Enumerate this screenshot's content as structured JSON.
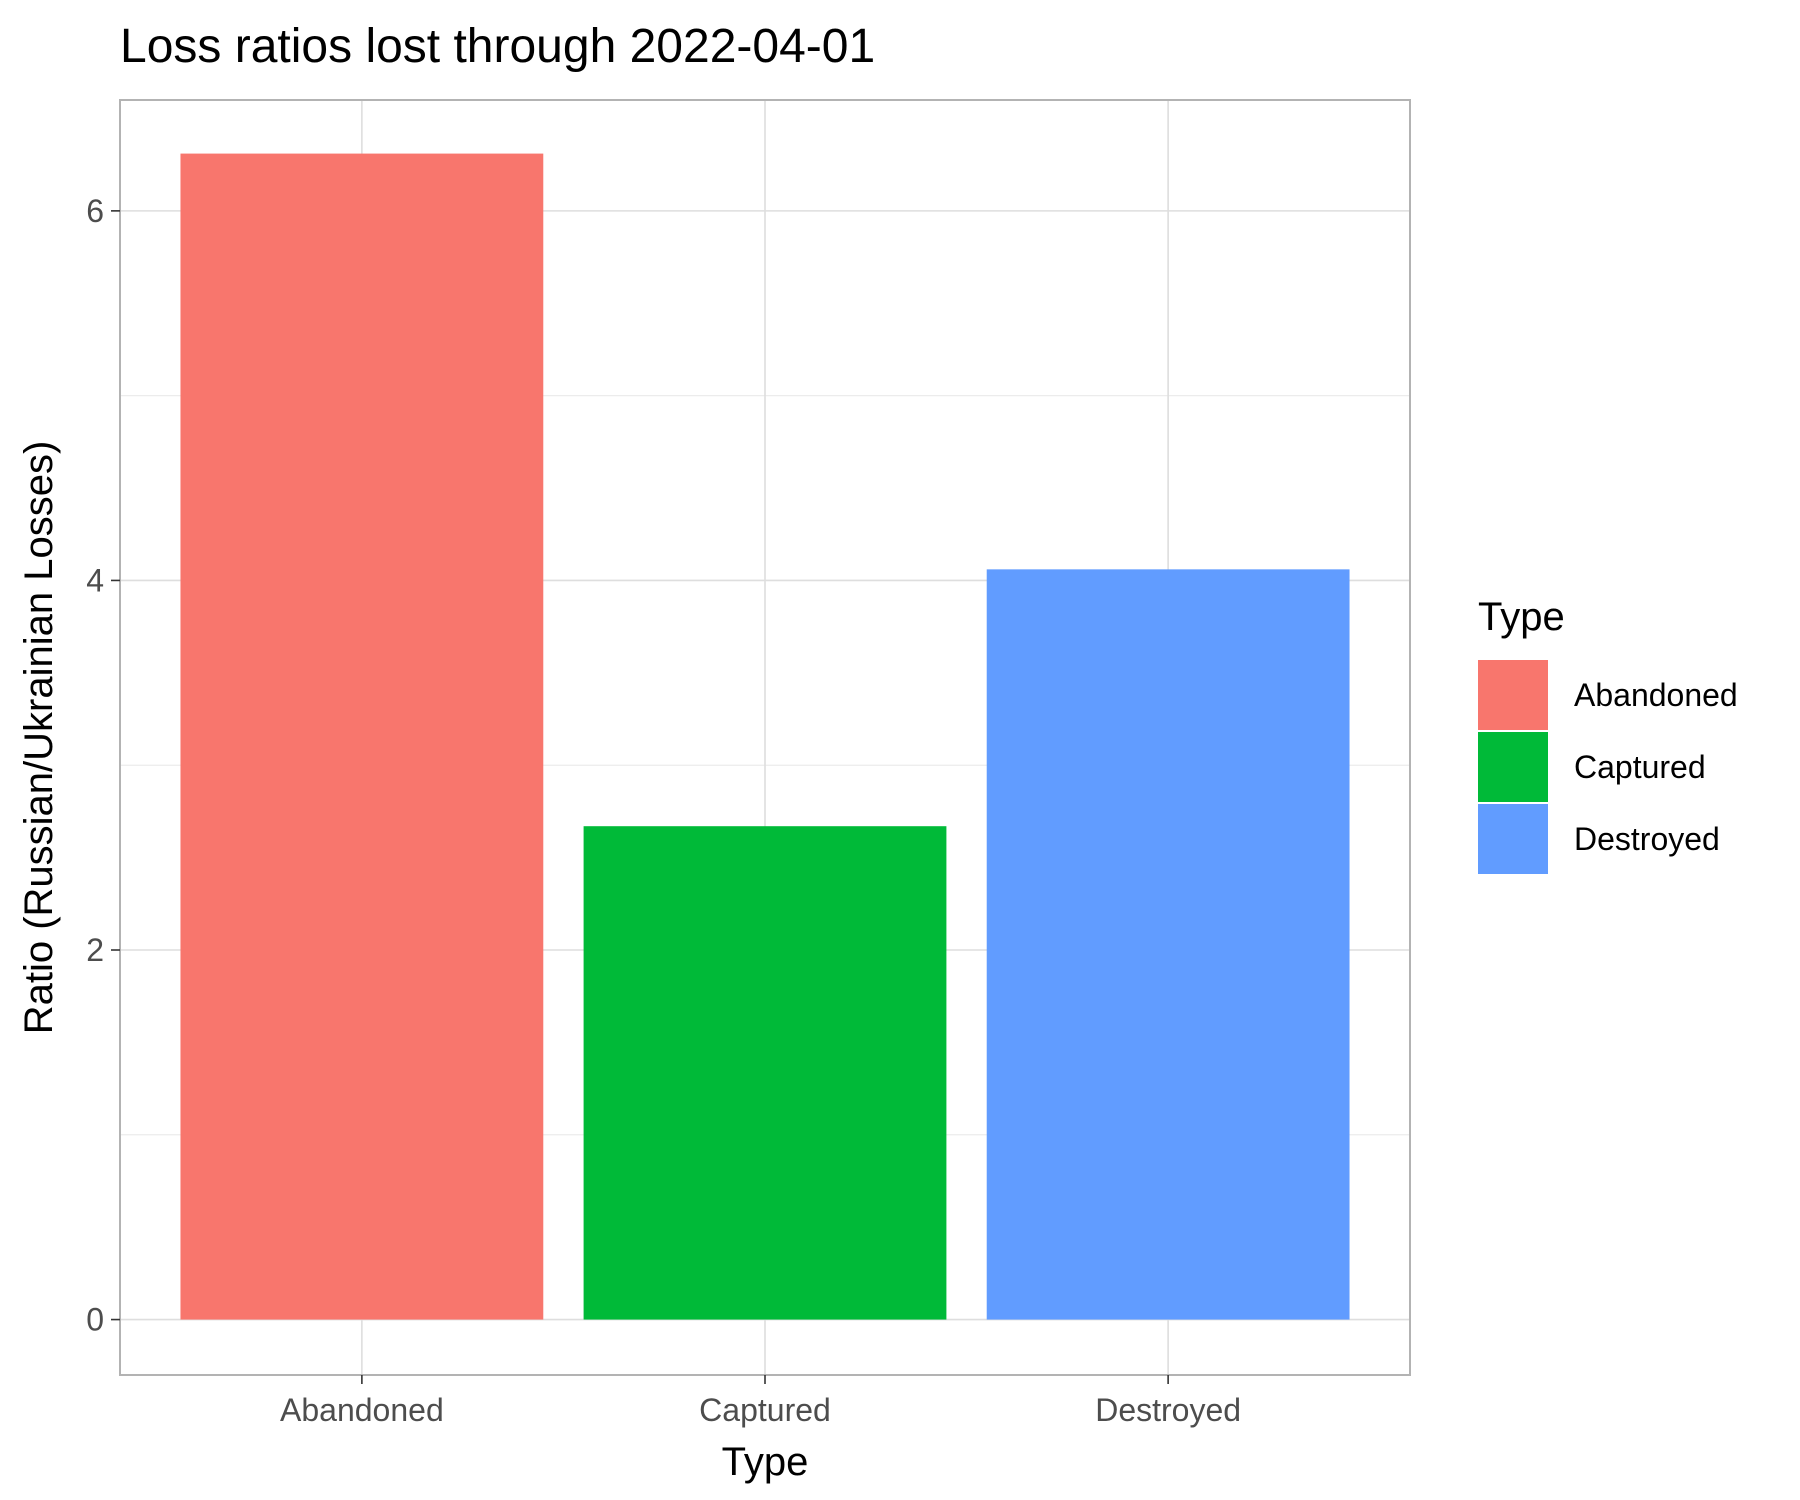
{
  "chart_data": {
    "type": "bar",
    "title": "Loss ratios lost through 2022-04-01",
    "xlabel": "Type",
    "ylabel": "Ratio (Russian/Ukrainian Losses)",
    "categories": [
      "Abandoned",
      "Captured",
      "Destroyed"
    ],
    "values": [
      6.31,
      2.67,
      4.06
    ],
    "colors": [
      "#F8766D",
      "#00BA38",
      "#619CFF"
    ],
    "ylim": [
      -0.3,
      6.6
    ],
    "yticks": [
      0,
      2,
      4,
      6
    ],
    "grid": true,
    "legend": {
      "title": "Type",
      "position": "right",
      "entries": [
        "Abandoned",
        "Captured",
        "Destroyed"
      ]
    }
  }
}
